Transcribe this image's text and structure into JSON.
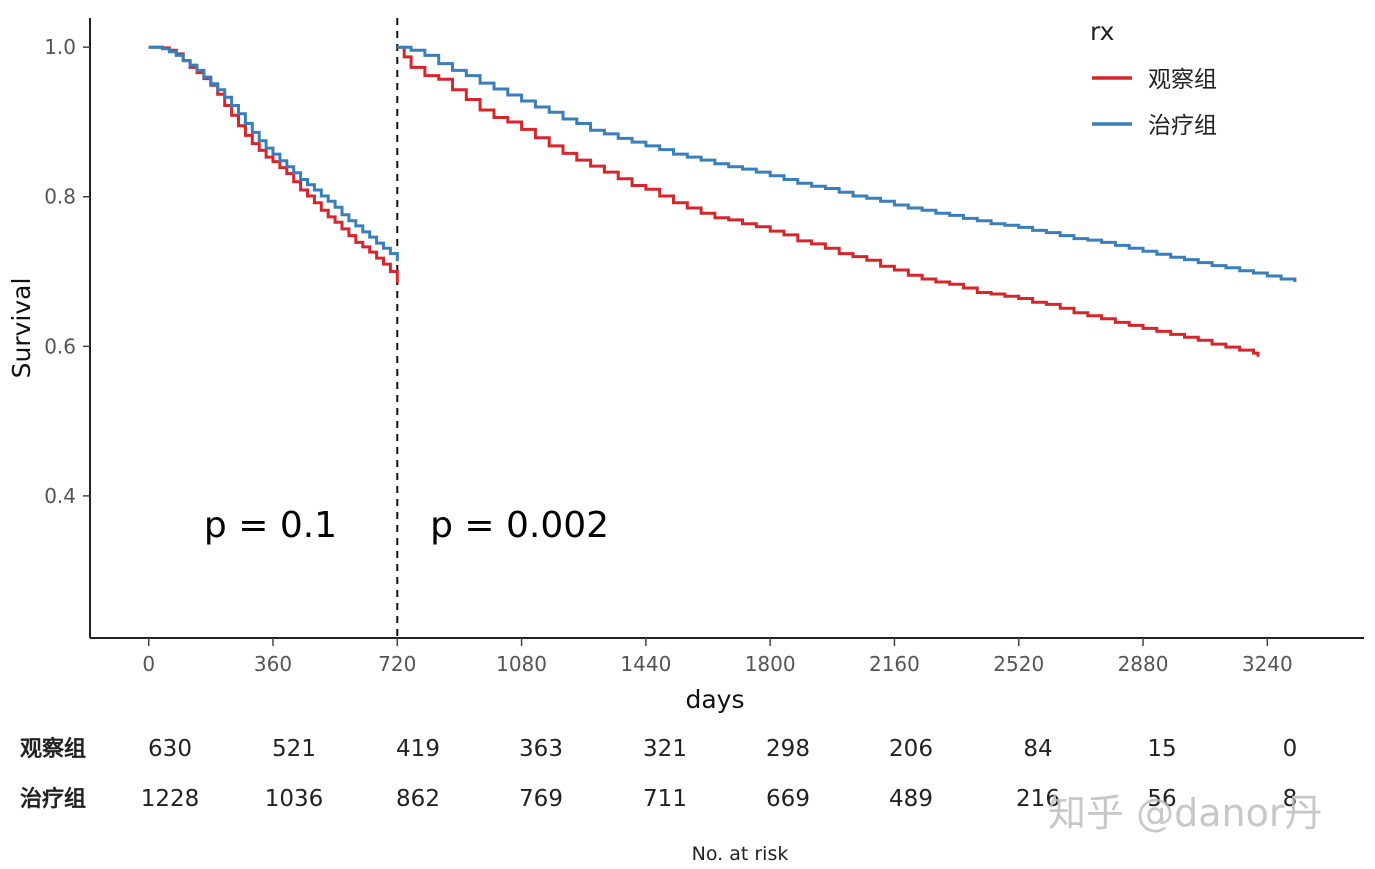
{
  "chart_data": {
    "type": "line",
    "x": {
      "label": "days",
      "lim": [
        -170,
        3520
      ],
      "ticks": [
        0,
        360,
        720,
        1080,
        1440,
        1800,
        2160,
        2520,
        2880,
        3240
      ]
    },
    "y": {
      "label": "Survival",
      "lim": [
        0.21,
        1.039
      ],
      "ticks": [
        0.4,
        0.6,
        0.8,
        1.0
      ],
      "tick_labels": [
        "0.4",
        "0.6",
        "0.8",
        "1.0"
      ]
    },
    "grid": false,
    "landmark_x": 720,
    "landmark_line_style": "dashed",
    "legend": {
      "title": "rx",
      "placement": "top-right"
    },
    "annotations": [
      {
        "text": "p = 0.1",
        "x": 160,
        "y": 0.345
      },
      {
        "text": "p = 0.002",
        "x": 815,
        "y": 0.345
      }
    ],
    "series": [
      {
        "name": "观察组",
        "color": "#d7262b",
        "segments": [
          [
            [
              0,
              1.0
            ],
            [
              20,
              1.0
            ],
            [
              40,
              0.999
            ],
            [
              60,
              0.996
            ],
            [
              80,
              0.991
            ],
            [
              100,
              0.982
            ],
            [
              120,
              0.973
            ],
            [
              140,
              0.966
            ],
            [
              160,
              0.958
            ],
            [
              180,
              0.949
            ],
            [
              200,
              0.937
            ],
            [
              220,
              0.922
            ],
            [
              240,
              0.909
            ],
            [
              260,
              0.895
            ],
            [
              280,
              0.882
            ],
            [
              300,
              0.871
            ],
            [
              320,
              0.862
            ],
            [
              340,
              0.853
            ],
            [
              360,
              0.847
            ],
            [
              380,
              0.839
            ],
            [
              400,
              0.831
            ],
            [
              420,
              0.82
            ],
            [
              440,
              0.809
            ],
            [
              460,
              0.801
            ],
            [
              480,
              0.792
            ],
            [
              500,
              0.782
            ],
            [
              520,
              0.773
            ],
            [
              540,
              0.766
            ],
            [
              560,
              0.757
            ],
            [
              580,
              0.748
            ],
            [
              600,
              0.739
            ],
            [
              620,
              0.733
            ],
            [
              640,
              0.726
            ],
            [
              660,
              0.718
            ],
            [
              680,
              0.71
            ],
            [
              700,
              0.7
            ],
            [
              720,
              0.685
            ]
          ],
          [
            [
              720,
              1.0
            ],
            [
              740,
              0.987
            ],
            [
              760,
              0.973
            ],
            [
              800,
              0.962
            ],
            [
              840,
              0.957
            ],
            [
              880,
              0.943
            ],
            [
              920,
              0.93
            ],
            [
              960,
              0.916
            ],
            [
              1000,
              0.906
            ],
            [
              1040,
              0.9
            ],
            [
              1080,
              0.89
            ],
            [
              1120,
              0.879
            ],
            [
              1160,
              0.868
            ],
            [
              1200,
              0.858
            ],
            [
              1240,
              0.849
            ],
            [
              1280,
              0.841
            ],
            [
              1320,
              0.833
            ],
            [
              1360,
              0.824
            ],
            [
              1400,
              0.815
            ],
            [
              1440,
              0.81
            ],
            [
              1480,
              0.801
            ],
            [
              1520,
              0.792
            ],
            [
              1560,
              0.785
            ],
            [
              1600,
              0.778
            ],
            [
              1640,
              0.772
            ],
            [
              1680,
              0.769
            ],
            [
              1720,
              0.764
            ],
            [
              1760,
              0.76
            ],
            [
              1800,
              0.754
            ],
            [
              1840,
              0.749
            ],
            [
              1880,
              0.741
            ],
            [
              1920,
              0.737
            ],
            [
              1960,
              0.731
            ],
            [
              2000,
              0.724
            ],
            [
              2040,
              0.72
            ],
            [
              2080,
              0.715
            ],
            [
              2120,
              0.707
            ],
            [
              2160,
              0.702
            ],
            [
              2200,
              0.695
            ],
            [
              2240,
              0.69
            ],
            [
              2280,
              0.686
            ],
            [
              2320,
              0.683
            ],
            [
              2360,
              0.678
            ],
            [
              2400,
              0.672
            ],
            [
              2440,
              0.67
            ],
            [
              2480,
              0.667
            ],
            [
              2520,
              0.664
            ],
            [
              2560,
              0.659
            ],
            [
              2600,
              0.656
            ],
            [
              2640,
              0.651
            ],
            [
              2680,
              0.645
            ],
            [
              2720,
              0.641
            ],
            [
              2760,
              0.637
            ],
            [
              2800,
              0.632
            ],
            [
              2840,
              0.628
            ],
            [
              2880,
              0.624
            ],
            [
              2920,
              0.62
            ],
            [
              2960,
              0.616
            ],
            [
              3000,
              0.612
            ],
            [
              3040,
              0.608
            ],
            [
              3080,
              0.603
            ],
            [
              3120,
              0.599
            ],
            [
              3160,
              0.595
            ],
            [
              3200,
              0.591
            ],
            [
              3213,
              0.586
            ]
          ]
        ]
      },
      {
        "name": "治疗组",
        "color": "#3a7ebc",
        "segments": [
          [
            [
              0,
              1.0
            ],
            [
              20,
              1.0
            ],
            [
              40,
              0.998
            ],
            [
              60,
              0.994
            ],
            [
              80,
              0.989
            ],
            [
              100,
              0.982
            ],
            [
              120,
              0.976
            ],
            [
              140,
              0.969
            ],
            [
              160,
              0.96
            ],
            [
              180,
              0.951
            ],
            [
              200,
              0.943
            ],
            [
              220,
              0.933
            ],
            [
              240,
              0.922
            ],
            [
              260,
              0.911
            ],
            [
              280,
              0.898
            ],
            [
              300,
              0.886
            ],
            [
              320,
              0.875
            ],
            [
              340,
              0.865
            ],
            [
              360,
              0.857
            ],
            [
              380,
              0.848
            ],
            [
              400,
              0.84
            ],
            [
              420,
              0.832
            ],
            [
              440,
              0.823
            ],
            [
              460,
              0.816
            ],
            [
              480,
              0.809
            ],
            [
              500,
              0.801
            ],
            [
              520,
              0.794
            ],
            [
              540,
              0.786
            ],
            [
              560,
              0.776
            ],
            [
              580,
              0.768
            ],
            [
              600,
              0.761
            ],
            [
              620,
              0.753
            ],
            [
              640,
              0.746
            ],
            [
              660,
              0.738
            ],
            [
              680,
              0.731
            ],
            [
              700,
              0.724
            ],
            [
              720,
              0.714
            ]
          ],
          [
            [
              720,
              1.0
            ],
            [
              760,
              0.996
            ],
            [
              800,
              0.989
            ],
            [
              840,
              0.978
            ],
            [
              880,
              0.969
            ],
            [
              920,
              0.962
            ],
            [
              960,
              0.952
            ],
            [
              1000,
              0.944
            ],
            [
              1040,
              0.936
            ],
            [
              1080,
              0.928
            ],
            [
              1120,
              0.92
            ],
            [
              1160,
              0.913
            ],
            [
              1200,
              0.904
            ],
            [
              1240,
              0.898
            ],
            [
              1280,
              0.889
            ],
            [
              1320,
              0.884
            ],
            [
              1360,
              0.878
            ],
            [
              1400,
              0.873
            ],
            [
              1440,
              0.868
            ],
            [
              1480,
              0.863
            ],
            [
              1520,
              0.857
            ],
            [
              1560,
              0.853
            ],
            [
              1600,
              0.849
            ],
            [
              1640,
              0.844
            ],
            [
              1680,
              0.84
            ],
            [
              1720,
              0.837
            ],
            [
              1760,
              0.833
            ],
            [
              1800,
              0.828
            ],
            [
              1840,
              0.823
            ],
            [
              1880,
              0.818
            ],
            [
              1920,
              0.814
            ],
            [
              1960,
              0.811
            ],
            [
              2000,
              0.806
            ],
            [
              2040,
              0.801
            ],
            [
              2080,
              0.798
            ],
            [
              2120,
              0.794
            ],
            [
              2160,
              0.789
            ],
            [
              2200,
              0.785
            ],
            [
              2240,
              0.782
            ],
            [
              2280,
              0.778
            ],
            [
              2320,
              0.775
            ],
            [
              2360,
              0.771
            ],
            [
              2400,
              0.768
            ],
            [
              2440,
              0.764
            ],
            [
              2480,
              0.762
            ],
            [
              2520,
              0.759
            ],
            [
              2560,
              0.755
            ],
            [
              2600,
              0.752
            ],
            [
              2640,
              0.748
            ],
            [
              2680,
              0.744
            ],
            [
              2720,
              0.742
            ],
            [
              2760,
              0.739
            ],
            [
              2800,
              0.735
            ],
            [
              2840,
              0.731
            ],
            [
              2880,
              0.727
            ],
            [
              2920,
              0.723
            ],
            [
              2960,
              0.719
            ],
            [
              3000,
              0.716
            ],
            [
              3040,
              0.712
            ],
            [
              3080,
              0.708
            ],
            [
              3120,
              0.705
            ],
            [
              3160,
              0.701
            ],
            [
              3200,
              0.698
            ],
            [
              3240,
              0.694
            ],
            [
              3280,
              0.69
            ],
            [
              3320,
              0.686
            ]
          ]
        ]
      }
    ],
    "risk_table": {
      "title": "No. at risk",
      "groups": [
        {
          "name": "观察组",
          "values": [
            "630",
            "521",
            "419",
            "363",
            "321",
            "298",
            "206",
            "84",
            "15",
            "0"
          ]
        },
        {
          "name": "治疗组",
          "values": [
            "1228",
            "1036",
            "862",
            "769",
            "711",
            "669",
            "489",
            "216",
            "56",
            "8"
          ]
        }
      ]
    }
  },
  "watermark": "知乎 @danor丹"
}
